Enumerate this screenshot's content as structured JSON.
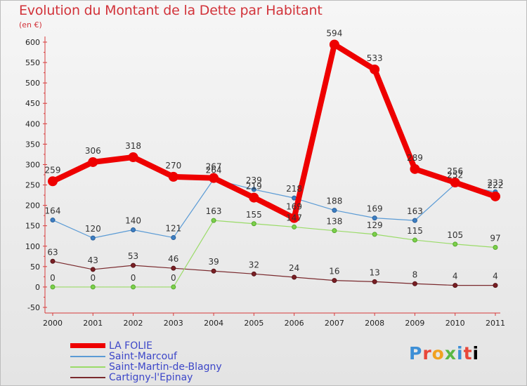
{
  "header": {
    "title": "Evolution du Montant de la Dette par Habitant",
    "subtitle": "(en €)"
  },
  "chart_data": {
    "type": "line",
    "categories": [
      "2000",
      "2001",
      "2002",
      "2003",
      "2004",
      "2005",
      "2006",
      "2007",
      "2008",
      "2009",
      "2010",
      "2011"
    ],
    "ylim": [
      -50,
      600
    ],
    "yticks": [
      -50,
      0,
      50,
      100,
      150,
      200,
      250,
      300,
      350,
      400,
      450,
      500,
      550,
      600
    ],
    "grid": false,
    "legend_position": "bottom-left",
    "series": [
      {
        "name": "LA FOLIE",
        "color": "#ee0000",
        "values": [
          259,
          306,
          318,
          270,
          267,
          219,
          169,
          594,
          533,
          289,
          256,
          222
        ]
      },
      {
        "name": "Saint-Marcouf",
        "color": "#4f8fc8",
        "values": [
          164,
          120,
          140,
          121,
          264,
          239,
          218,
          188,
          169,
          163,
          252,
          233
        ]
      },
      {
        "name": "Saint-Martin-de-Blagny",
        "color": "#8fd35a",
        "values": [
          0,
          0,
          0,
          0,
          163,
          155,
          147,
          138,
          129,
          115,
          105,
          97
        ]
      },
      {
        "name": "Cartigny-l'Epinay",
        "color": "#6b1f23",
        "values": [
          63,
          43,
          53,
          46,
          39,
          32,
          24,
          16,
          13,
          8,
          4,
          4
        ]
      }
    ]
  },
  "logo": {
    "letters": [
      "P",
      "r",
      "o",
      "x",
      "i",
      "t",
      "i"
    ]
  }
}
